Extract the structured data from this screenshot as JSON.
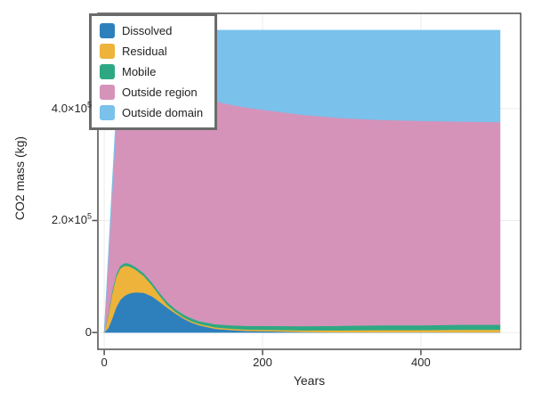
{
  "figure": {
    "background": "#ffffff",
    "border_color": "#4d4d4d"
  },
  "chart_data": {
    "type": "area",
    "stacked": true,
    "title": "",
    "xlabel": "Years",
    "ylabel": "CO2 mass (kg)",
    "xlim": [
      -8,
      526
    ],
    "ylim": [
      -30000,
      570000
    ],
    "grid": true,
    "grid_color": "#ececec",
    "axis_color": "#4d4d4d",
    "legend_position": "top-left",
    "x": [
      0,
      5,
      10,
      15,
      20,
      25,
      30,
      35,
      40,
      50,
      60,
      70,
      80,
      90,
      100,
      110,
      120,
      140,
      160,
      180,
      200,
      250,
      300,
      350,
      400,
      450,
      500
    ],
    "series": [
      {
        "name": "Dissolved",
        "color": "#2e80bd",
        "values": [
          0,
          8000,
          25000,
          45000,
          58000,
          65000,
          69000,
          71000,
          72000,
          71000,
          65000,
          55000,
          44000,
          34000,
          25000,
          18000,
          13000,
          7000,
          4500,
          3000,
          2500,
          1000,
          600,
          600,
          600,
          600,
          600
        ]
      },
      {
        "name": "Residual",
        "color": "#edb33a",
        "values": [
          0,
          22000,
          44000,
          54000,
          56000,
          54000,
          50000,
          45000,
          40000,
          30000,
          20000,
          11000,
          5000,
          3000,
          2500,
          2500,
          2500,
          2500,
          2500,
          2500,
          2500,
          3000,
          3500,
          4000,
          4000,
          4500,
          4500
        ]
      },
      {
        "name": "Mobile",
        "color": "#2ea883",
        "values": [
          0,
          4000,
          5000,
          5000,
          5000,
          5000,
          5000,
          5000,
          5000,
          5000,
          5000,
          5000,
          5000,
          5000,
          5000,
          5000,
          5000,
          5500,
          6000,
          6500,
          7000,
          7500,
          8000,
          8500,
          8500,
          9000,
          9000
        ]
      },
      {
        "name": "Outside region",
        "color": "#d593ba",
        "values": [
          0,
          91000,
          174000,
          264000,
          359000,
          373000,
          366000,
          363000,
          361000,
          359000,
          365000,
          377000,
          386000,
          393000,
          397500,
          399500,
          399500,
          398000,
          394000,
          390000,
          386000,
          377500,
          370900,
          366900,
          364900,
          362900,
          361900
        ]
      },
      {
        "name": "Outside domain",
        "color": "#7ac1eb",
        "values": [
          0,
          8000,
          15000,
          25000,
          35000,
          43000,
          50000,
          56000,
          62000,
          75000,
          85000,
          92000,
          100000,
          105000,
          110000,
          115000,
          120000,
          127000,
          133000,
          138000,
          142000,
          151000,
          157000,
          160000,
          162000,
          163000,
          164000
        ]
      }
    ],
    "x_ticks": [
      {
        "value": 0,
        "base": "0",
        "exp": ""
      },
      {
        "value": 200,
        "base": "200",
        "exp": ""
      },
      {
        "value": 400,
        "base": "400",
        "exp": ""
      }
    ],
    "y_ticks": [
      {
        "value": 0,
        "base": "0",
        "exp": ""
      },
      {
        "value": 200000,
        "base": "2.0×10",
        "exp": "5"
      },
      {
        "value": 400000,
        "base": "4.0×10",
        "exp": "5"
      }
    ]
  }
}
